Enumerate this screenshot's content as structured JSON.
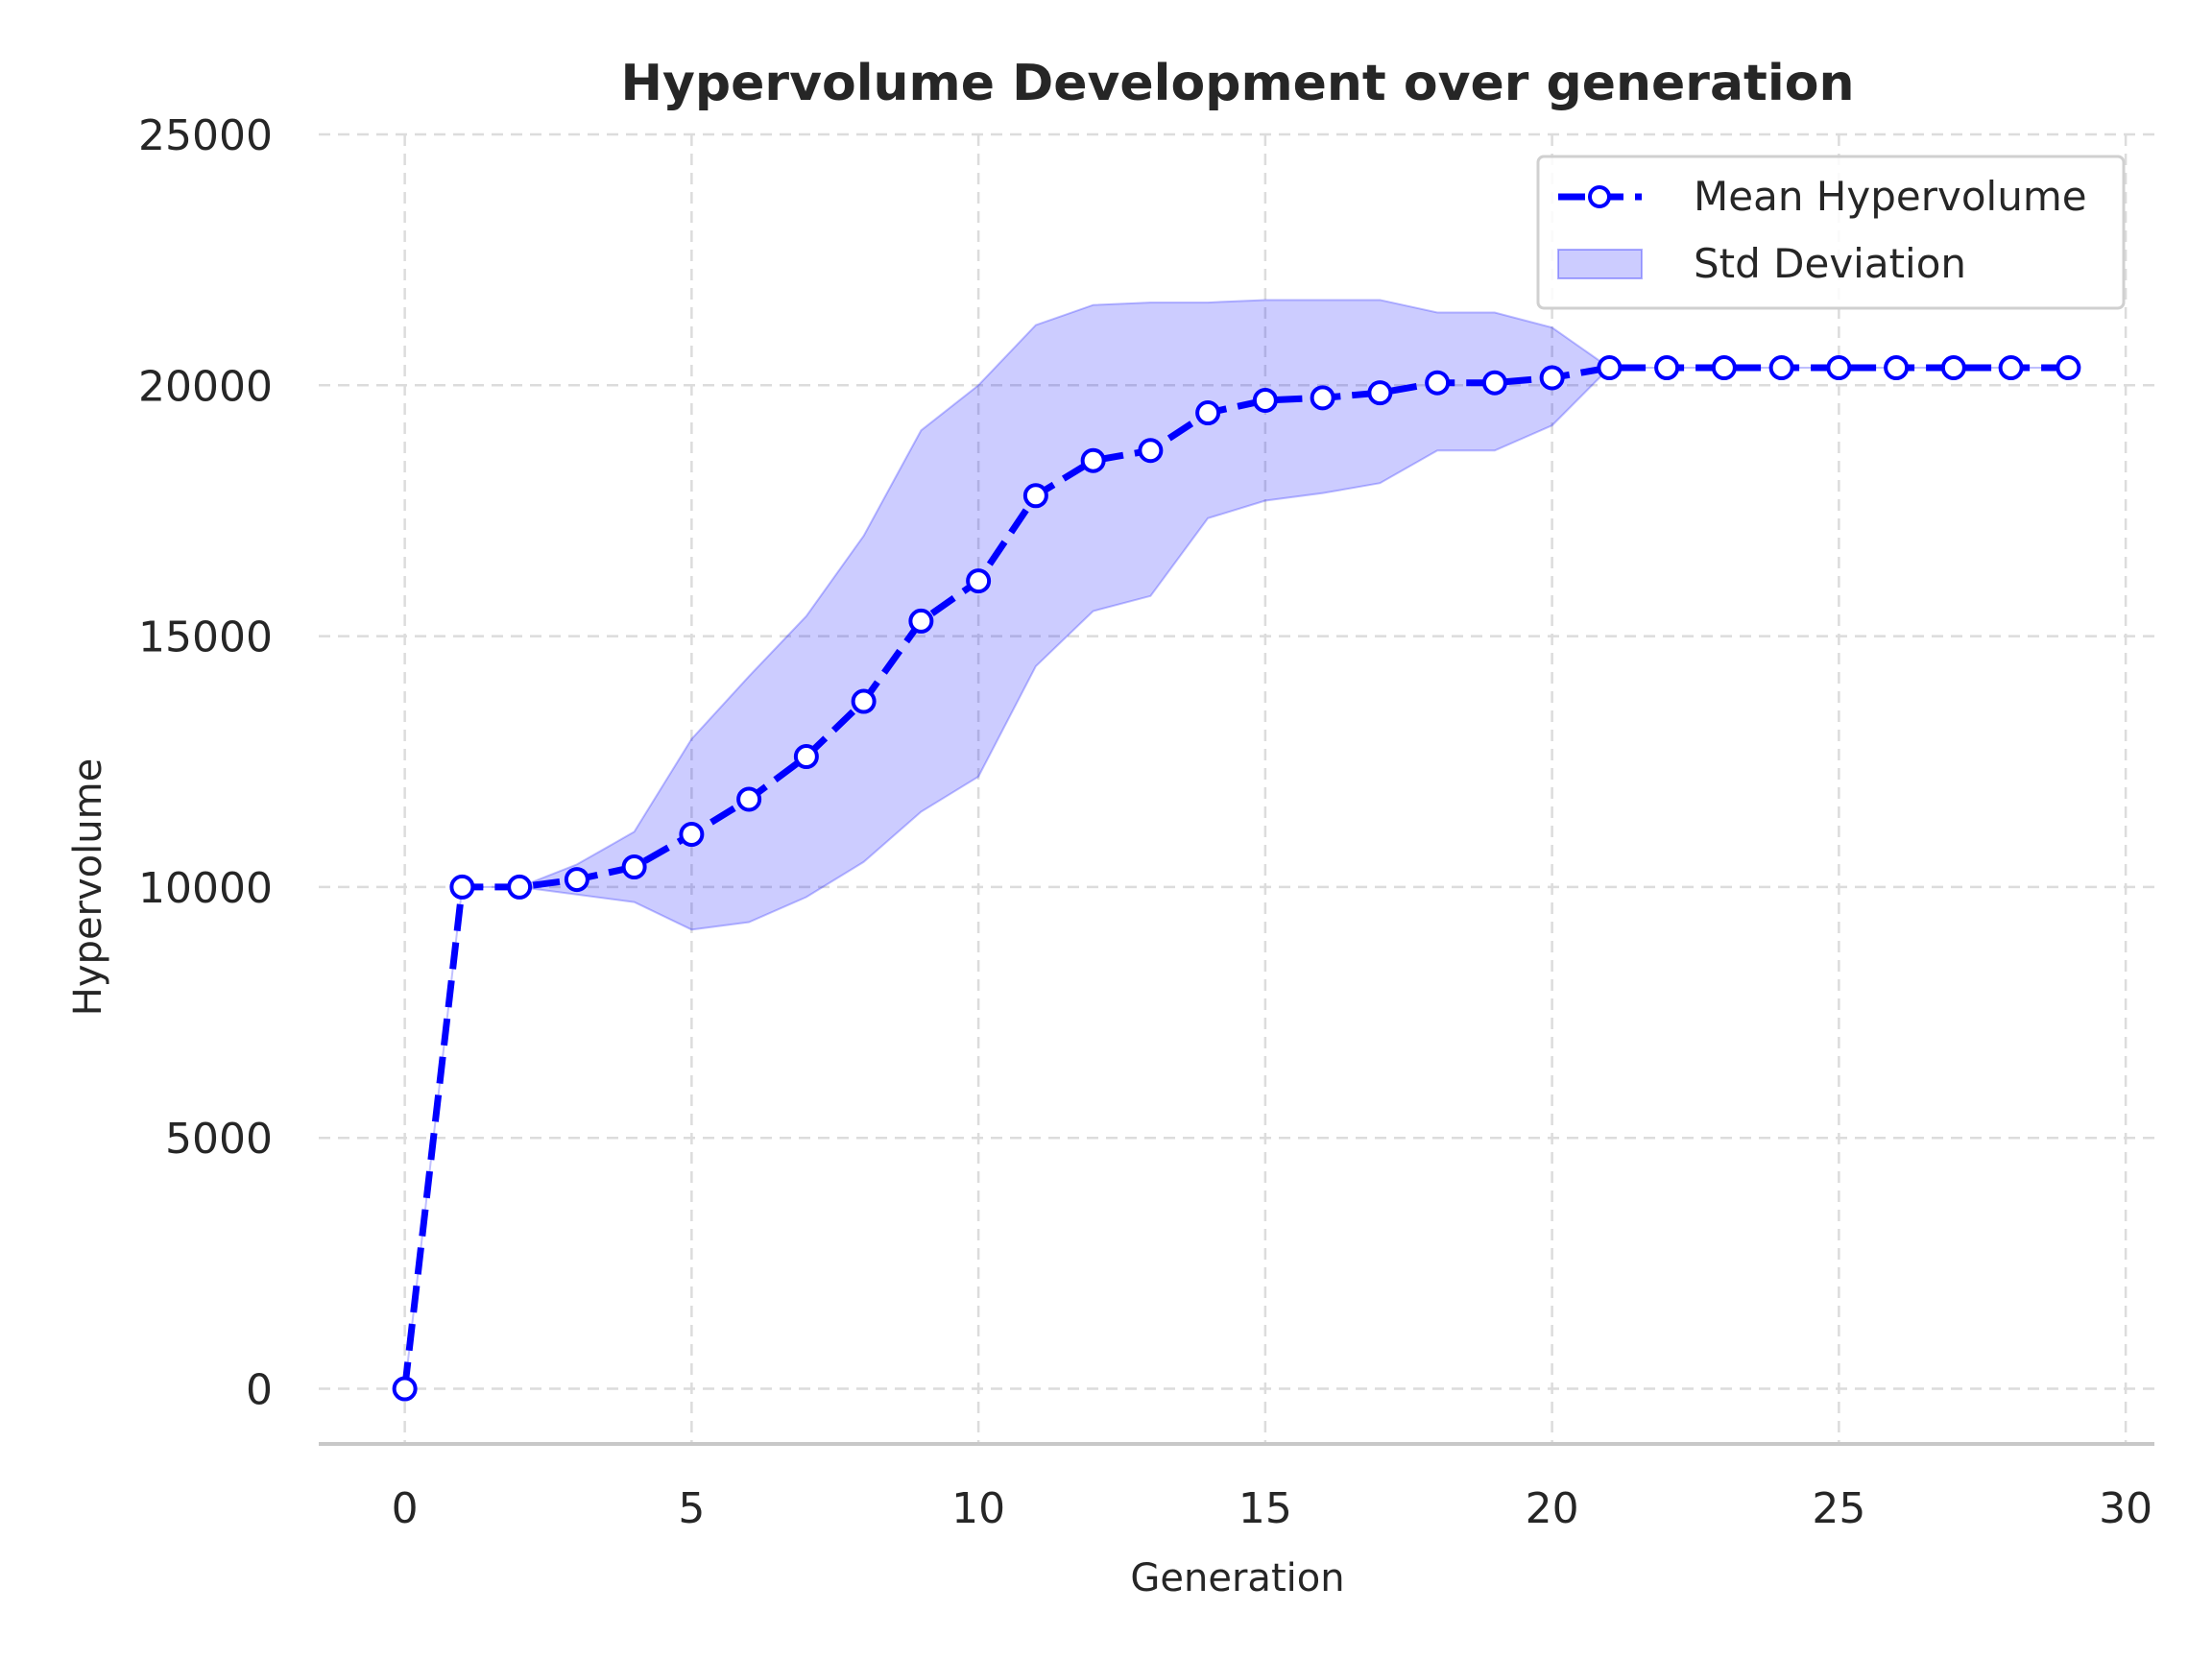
{
  "chart_data": {
    "type": "line",
    "title": "Hypervolume Development over generation",
    "xlabel": "Generation",
    "ylabel": "Hypervolume",
    "xlim": [
      -1.5,
      30.5
    ],
    "ylim": [
      -1100,
      25000
    ],
    "xticks": [
      0,
      5,
      10,
      15,
      20,
      25,
      30
    ],
    "yticks": [
      0,
      5000,
      10000,
      15000,
      20000,
      25000
    ],
    "grid": true,
    "legend_position": "top-right",
    "x": [
      0,
      1,
      2,
      3,
      4,
      5,
      6,
      7,
      8,
      9,
      10,
      11,
      12,
      13,
      14,
      15,
      16,
      17,
      18,
      19,
      20,
      21,
      22,
      23,
      24,
      25,
      26,
      27,
      28,
      29
    ],
    "series": [
      {
        "name": "Mean Hypervolume",
        "kind": "line",
        "color": "#0000ff",
        "line_style": "dashed",
        "marker": "circle",
        "values": [
          0,
          10000,
          10000,
          10150,
          10400,
          11050,
          11750,
          12600,
          13700,
          15300,
          16100,
          17800,
          18500,
          18700,
          19450,
          19700,
          19750,
          19850,
          20050,
          20050,
          20150,
          20350,
          20350,
          20350,
          20350,
          20350,
          20350,
          20350,
          20350,
          20350
        ]
      },
      {
        "name": "Std Deviation",
        "kind": "band",
        "color": "#0000ff",
        "opacity": 0.2,
        "lower": [
          0,
          10000,
          10000,
          9850,
          9700,
          9150,
          9300,
          9800,
          10500,
          11500,
          12200,
          14400,
          15500,
          15800,
          17350,
          17700,
          17850,
          18050,
          18700,
          18700,
          19200,
          20350,
          20350,
          20350,
          20350,
          20350,
          20350,
          20350,
          20350,
          20350
        ],
        "upper": [
          0,
          10000,
          10000,
          10450,
          11100,
          12950,
          14200,
          15400,
          17000,
          19100,
          20000,
          21200,
          21600,
          21650,
          21650,
          21700,
          21700,
          21700,
          21450,
          21450,
          21150,
          20350,
          20350,
          20350,
          20350,
          20350,
          20350,
          20350,
          20350,
          20350
        ]
      }
    ]
  }
}
